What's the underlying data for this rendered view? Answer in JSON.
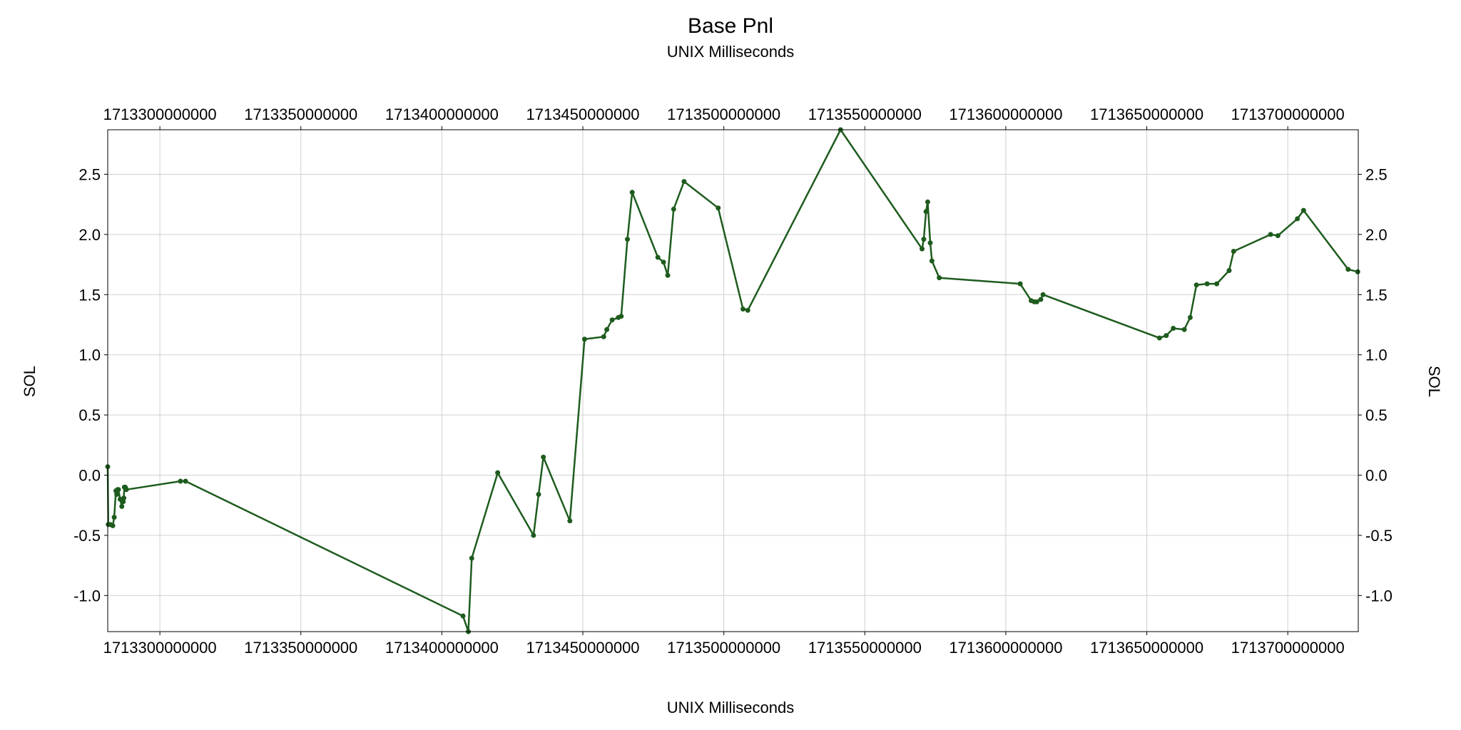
{
  "chart_data": {
    "type": "line",
    "title": "Base Pnl",
    "subtitle": "UNIX Milliseconds",
    "xlabel": "UNIX Milliseconds",
    "ylabel": "SOL",
    "ylabel_right": "SOL",
    "xlim": [
      1713281500000,
      1713725000000
    ],
    "ylim": [
      -1.3,
      2.87
    ],
    "x_ticks": [
      1713300000000,
      1713350000000,
      1713400000000,
      1713450000000,
      1713500000000,
      1713550000000,
      1713600000000,
      1713650000000,
      1713700000000
    ],
    "x_tick_labels": [
      "1713300000000",
      "1713350000000",
      "1713400000000",
      "1713450000000",
      "1713500000000",
      "1713550000000",
      "1713600000000",
      "1713650000000",
      "1713700000000"
    ],
    "y_ticks": [
      -1.0,
      -0.5,
      0.0,
      0.5,
      1.0,
      1.5,
      2.0,
      2.5
    ],
    "y_tick_labels": [
      "-1.0",
      "-0.5",
      "0.0",
      "0.5",
      "1.0",
      "1.5",
      "2.0",
      "2.5"
    ],
    "grid": true,
    "line_color": "#1e5c1e",
    "series": [
      {
        "x": [
          1713281500000,
          1713281700000,
          1713282400000,
          1713283300000,
          1713283800000,
          1713284400000,
          1713284700000,
          1713285000000,
          1713285300000,
          1713285900000,
          1713286500000,
          1713287000000,
          1713287200000,
          1713287400000,
          1713287700000,
          1713287900000,
          1713288100000,
          1713307300000,
          1713309100000,
          1713407500000,
          1713409400000,
          1713410600000,
          1713419800000,
          1713432500000,
          1713434300000,
          1713436000000,
          1713445400000,
          1713450600000,
          1713457400000,
          1713458500000,
          1713460400000,
          1713462600000,
          1713463600000,
          1713465800000,
          1713467500000,
          1713476600000,
          1713478600000,
          1713480100000,
          1713482200000,
          1713485900000,
          1713498000000,
          1713506800000,
          1713508500000,
          1713541400000,
          1713570300000,
          1713570900000,
          1713571700000,
          1713572300000,
          1713573200000,
          1713573800000,
          1713576400000,
          1713605100000,
          1713609000000,
          1713610100000,
          1713611000000,
          1713612400000,
          1713613200000,
          1713654500000,
          1713656900000,
          1713659400000,
          1713663300000,
          1713665400000,
          1713667600000,
          1713671400000,
          1713674800000,
          1713679200000,
          1713680800000,
          1713693900000,
          1713696500000,
          1713703400000,
          1713705600000,
          1713721400000,
          1713724800000
        ],
        "y": [
          0.07,
          -0.41,
          -0.41,
          -0.42,
          -0.35,
          -0.13,
          -0.16,
          -0.12,
          -0.12,
          -0.2,
          -0.26,
          -0.22,
          -0.19,
          -0.1,
          -0.1,
          -0.11,
          -0.12,
          -0.05,
          -0.05,
          -1.17,
          -1.3,
          -0.69,
          0.02,
          -0.5,
          -0.16,
          0.15,
          -0.38,
          1.13,
          1.15,
          1.21,
          1.29,
          1.31,
          1.32,
          1.96,
          2.35,
          1.81,
          1.77,
          1.66,
          2.21,
          2.44,
          2.22,
          1.38,
          1.37,
          2.87,
          1.88,
          1.96,
          2.19,
          2.27,
          1.93,
          1.78,
          1.64,
          1.59,
          1.45,
          1.44,
          1.44,
          1.46,
          1.5,
          1.14,
          1.16,
          1.22,
          1.21,
          1.31,
          1.58,
          1.59,
          1.59,
          1.7,
          1.86,
          2.0,
          1.99,
          2.13,
          2.2,
          1.71,
          1.69
        ]
      }
    ]
  }
}
